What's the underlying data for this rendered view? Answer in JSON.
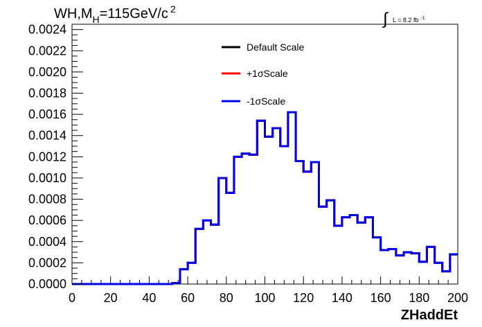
{
  "chart_data": {
    "type": "step",
    "title": {
      "main": "WH,M",
      "sub": "H",
      "rest": "=115GeV/c",
      "sup": "2"
    },
    "lumi": {
      "integral": "∫",
      "text": "L = 8.2 fb",
      "sup": "-1"
    },
    "xlabel": "ZHaddEt",
    "ylabel": "",
    "xlim": [
      0,
      200
    ],
    "ylim": [
      0,
      0.00245
    ],
    "bin_width": 4,
    "x_ticks": [
      "0",
      "20",
      "40",
      "60",
      "80",
      "100",
      "120",
      "140",
      "160",
      "180",
      "200"
    ],
    "y_ticks": [
      "0.0000",
      "0.0002",
      "0.0004",
      "0.0006",
      "0.0008",
      "0.0010",
      "0.0012",
      "0.0014",
      "0.0016",
      "0.0018",
      "0.0020",
      "0.0022",
      "0.0024"
    ],
    "grid": false,
    "legend_position": "top-center",
    "series": [
      {
        "name": "Default Scale",
        "color": "#000000",
        "values": [
          0,
          0,
          0,
          0,
          0,
          0,
          0,
          0,
          0,
          0,
          0,
          0,
          0,
          1e-05,
          0.00014,
          0.0002,
          0.00052,
          0.0006,
          0.00056,
          0.001,
          0.00086,
          0.0012,
          0.00123,
          0.00122,
          0.00154,
          0.00139,
          0.00147,
          0.0013,
          0.00162,
          0.00116,
          0.00106,
          0.00115,
          0.00073,
          0.00079,
          0.00055,
          0.00063,
          0.00065,
          0.00058,
          0.00063,
          0.00044,
          0.00032,
          0.00033,
          0.00027,
          0.0003,
          0.00029,
          0.00021,
          0.00035,
          0.0002,
          0.00012,
          0.00028
        ]
      },
      {
        "name": "+1σScale",
        "color": "#ff0000",
        "values": [
          0,
          0,
          0,
          0,
          0,
          0,
          0,
          0,
          0,
          0,
          0,
          0,
          0,
          1e-05,
          0.00014,
          0.0002,
          0.00052,
          0.0006,
          0.00056,
          0.001,
          0.00086,
          0.0012,
          0.00123,
          0.00122,
          0.00154,
          0.00139,
          0.00147,
          0.0013,
          0.00162,
          0.00116,
          0.00106,
          0.00115,
          0.00073,
          0.00079,
          0.00055,
          0.00063,
          0.00065,
          0.00058,
          0.00063,
          0.00044,
          0.00032,
          0.00033,
          0.00027,
          0.0003,
          0.00029,
          0.00021,
          0.00035,
          0.0002,
          0.00012,
          0.00028
        ]
      },
      {
        "name": "-1σScale",
        "color": "#0000ee",
        "values": [
          0,
          0,
          0,
          0,
          0,
          0,
          0,
          0,
          0,
          0,
          0,
          0,
          0,
          1e-05,
          0.00014,
          0.0002,
          0.00052,
          0.0006,
          0.00056,
          0.001,
          0.00086,
          0.0012,
          0.00123,
          0.00122,
          0.00154,
          0.00139,
          0.00147,
          0.0013,
          0.00162,
          0.00116,
          0.00106,
          0.00115,
          0.00073,
          0.00079,
          0.00055,
          0.00063,
          0.00065,
          0.00058,
          0.00063,
          0.00044,
          0.00032,
          0.00033,
          0.00027,
          0.0003,
          0.00029,
          0.00021,
          0.00035,
          0.0002,
          0.00012,
          0.00028
        ]
      }
    ]
  }
}
